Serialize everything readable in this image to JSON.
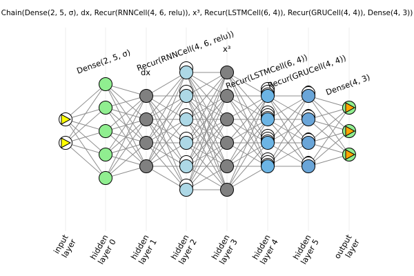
{
  "title": "Chain(Dense(2, 5, σ), dx, Recur(RNNCell(4, 6, relu)), x³, Recur(LSTMCell(6, 4)), Recur(GRUCell(4, 4)), Dense(4, 3))",
  "layer_annotations": [
    {
      "text": "Dense(2, 5, σ)"
    },
    {
      "text": "Recur(RNNCell(4, 6, relu))"
    },
    {
      "text": "dx"
    },
    {
      "text": "x³"
    },
    {
      "text": "Recur(LSTMCell(6, 4))"
    },
    {
      "text": "Recur(GRUCell(4, 4))"
    },
    {
      "text": "Dense(4, 3)"
    }
  ],
  "axis_labels": [
    {
      "line1": "input",
      "line2": "layer"
    },
    {
      "line1": "hidden",
      "line2": "layer 0"
    },
    {
      "line1": "hidden",
      "line2": "layer 1"
    },
    {
      "line1": "hidden",
      "line2": "layer 2"
    },
    {
      "line1": "hidden",
      "line2": "layer 3"
    },
    {
      "line1": "hidden",
      "line2": "layer 4"
    },
    {
      "line1": "hidden",
      "line2": "layer 5"
    },
    {
      "line1": "output",
      "line2": "layer"
    }
  ],
  "layers": [
    {
      "neurons": 2,
      "style": "input"
    },
    {
      "neurons": 5,
      "style": "dense"
    },
    {
      "neurons": 4,
      "style": "plain"
    },
    {
      "neurons": 6,
      "style": "rnn"
    },
    {
      "neurons": 6,
      "style": "plain"
    },
    {
      "neurons": 4,
      "style": "lstm"
    },
    {
      "neurons": 4,
      "style": "gru"
    },
    {
      "neurons": 3,
      "style": "output"
    }
  ],
  "colors": {
    "connection": "#8c8c8c",
    "gridline": "#ececec",
    "input_fill": "#ffff00",
    "dense_fill": "#90ee90",
    "plain_fill": "#808080",
    "rnn_fill": "#add8e6",
    "lstm_fill": "#6cb4e4",
    "gru_fill": "#6aa5d8",
    "output_fill": "#ffa500",
    "ghost_fill": "#ffffff",
    "stroke": "#000000"
  }
}
